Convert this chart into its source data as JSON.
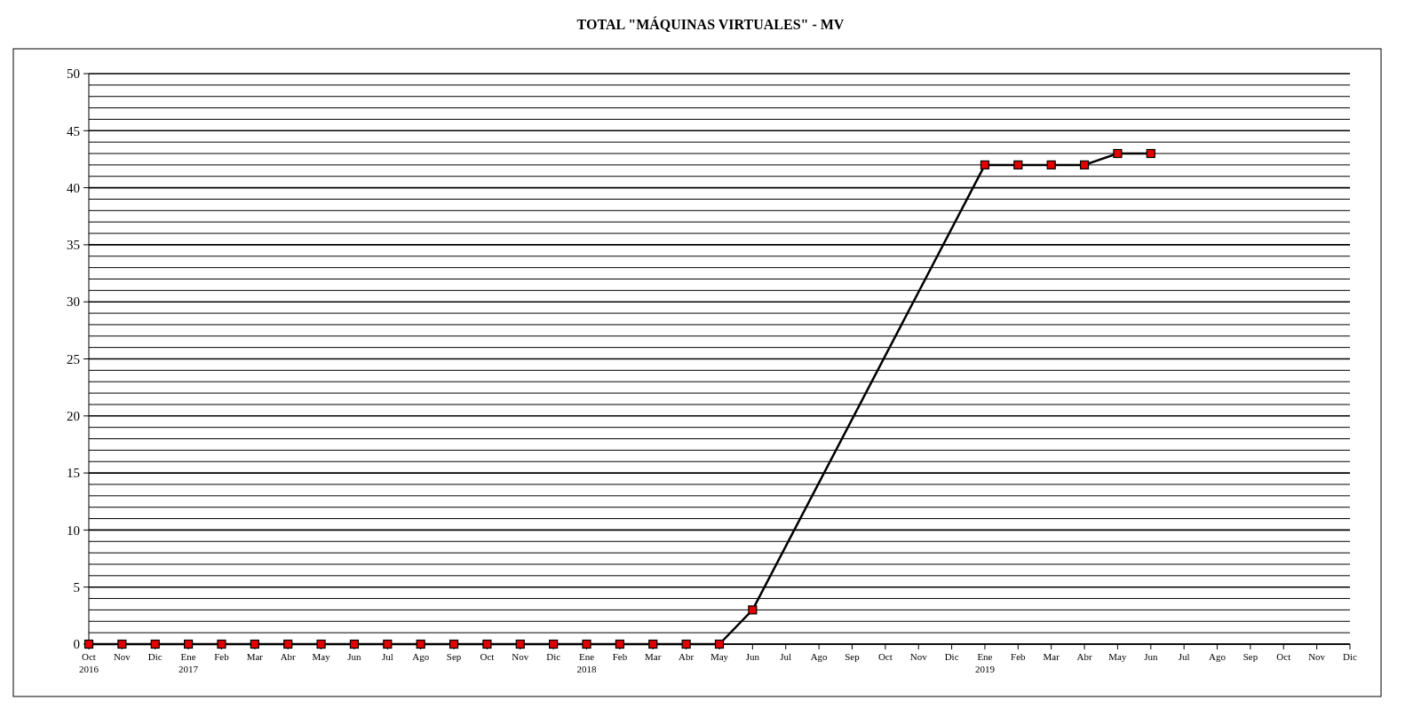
{
  "chart_data": {
    "type": "line",
    "title": "TOTAL \"MÁQUINAS VIRTUALES\" - MV",
    "categories": [
      "Oct\n2016",
      "Nov",
      "Dic",
      "Ene\n2017",
      "Feb",
      "Mar",
      "Abr",
      "May",
      "Jun",
      "Jul",
      "Ago",
      "Sep",
      "Oct",
      "Nov",
      "Dic",
      "Ene\n2018",
      "Feb",
      "Mar",
      "Abr",
      "May",
      "Jun",
      "Jul",
      "Ago",
      "Sep",
      "Oct",
      "Nov",
      "Dic",
      "Ene\n2019",
      "Feb",
      "Mar",
      "Abr",
      "May",
      "Jun",
      "Jul",
      "Ago",
      "Sep",
      "Oct",
      "Nov",
      "Dic"
    ],
    "series": [
      {
        "color": "#000000",
        "values": [
          0,
          0,
          0,
          0,
          0,
          0,
          0,
          0,
          0,
          0,
          0,
          0,
          0,
          0,
          0,
          0,
          0,
          0,
          0,
          0,
          3,
          null,
          null,
          null,
          null,
          null,
          null,
          42,
          42,
          42,
          42,
          43,
          43,
          null,
          null,
          null,
          null,
          null,
          null
        ]
      }
    ],
    "marker": "square",
    "line_style": "solid",
    "grid": "y",
    "ylim": [
      0,
      50
    ],
    "yticks": [
      0,
      {
        "value": 1,
        "label": null
      },
      {
        "value": 2,
        "label": null
      },
      {
        "value": 3,
        "label": null
      },
      {
        "value": 4,
        "label": null
      },
      5,
      {
        "value": 6,
        "label": null
      },
      {
        "value": 7,
        "label": null
      },
      {
        "value": 8,
        "label": null
      },
      {
        "value": 9,
        "label": null
      },
      10,
      {
        "value": 11,
        "label": null
      },
      {
        "value": 12,
        "label": null
      },
      {
        "value": 13,
        "label": null
      },
      {
        "value": 14,
        "label": null
      },
      15,
      {
        "value": 16,
        "label": null
      },
      {
        "value": 17,
        "label": null
      },
      {
        "value": 18,
        "label": null
      },
      {
        "value": 19,
        "label": null
      },
      20,
      {
        "value": 21,
        "label": null
      },
      {
        "value": 22,
        "label": null
      },
      {
        "value": 23,
        "label": null
      },
      {
        "value": 24,
        "label": null
      },
      25,
      {
        "value": 26,
        "label": null
      },
      {
        "value": 27,
        "label": null
      },
      {
        "value": 28,
        "label": null
      },
      {
        "value": 29,
        "label": null
      },
      30,
      {
        "value": 31,
        "label": null
      },
      {
        "value": 32,
        "label": null
      },
      {
        "value": 33,
        "label": null
      },
      {
        "value": 34,
        "label": null
      },
      35,
      {
        "value": 36,
        "label": null
      },
      {
        "value": 37,
        "label": null
      },
      {
        "value": 38,
        "label": null
      },
      {
        "value": 39,
        "label": null
      },
      40,
      {
        "value": 41,
        "label": null
      },
      {
        "value": 42,
        "label": null
      },
      {
        "value": 43,
        "label": null
      },
      {
        "value": 44,
        "label": null
      },
      45,
      {
        "value": 46,
        "label": null
      },
      {
        "value": 47,
        "label": null
      },
      {
        "value": 48,
        "label": null
      },
      {
        "value": 49,
        "label": null
      },
      50
    ]
  }
}
